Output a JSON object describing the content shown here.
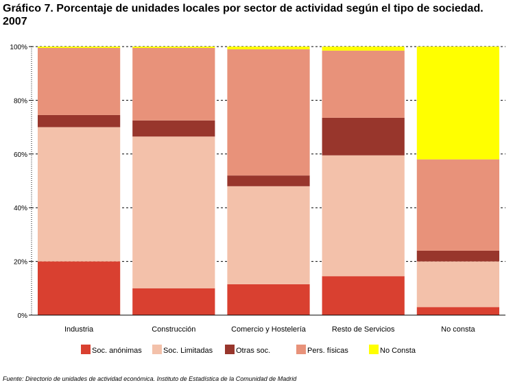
{
  "title": "Gráfico 7. Porcentaje de unidades locales por sector de actividad según el tipo de sociedad. 2007",
  "source": "Fuente: Directorio de unidades de actividad económica. Instituto de Estadística de la Comunidad de Madrid",
  "chart_data": {
    "type": "bar",
    "stacked": true,
    "categories": [
      "Industria",
      "Construcción",
      "Comercio y Hostelería",
      "Resto de Servicios",
      "No consta"
    ],
    "series": [
      {
        "name": "Soc. anónimas",
        "color": "#d94030",
        "values": [
          20,
          10,
          11.5,
          14.5,
          3
        ]
      },
      {
        "name": "Soc. Limitadas",
        "color": "#f3c1aa",
        "values": [
          50,
          56.5,
          36.5,
          45,
          17
        ]
      },
      {
        "name": "Otras soc.",
        "color": "#98362c",
        "values": [
          4.5,
          6,
          4,
          14,
          4
        ]
      },
      {
        "name": "Pers. físicas",
        "color": "#e8927a",
        "values": [
          25,
          27,
          47,
          25,
          34
        ]
      },
      {
        "name": "No Consta",
        "color": "#ffff00",
        "values": [
          0.5,
          0.5,
          1,
          1.5,
          42
        ]
      }
    ],
    "y_ticks": [
      "0%",
      "20%",
      "40%",
      "60%",
      "80%",
      "100%"
    ],
    "ylim": [
      0,
      100
    ],
    "grid": "dashed horizontal",
    "legend_position": "bottom"
  }
}
